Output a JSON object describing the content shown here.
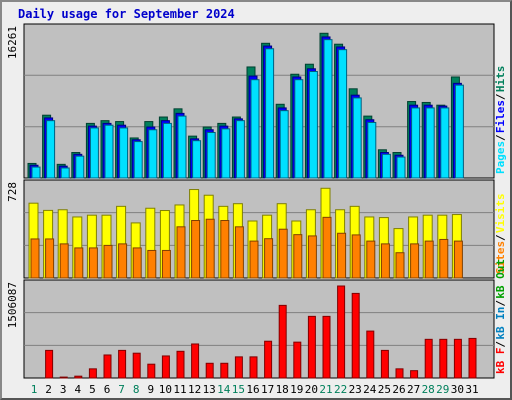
{
  "title": "Daily usage for September 2024",
  "colors": {
    "panel_bg": "#c0c0c0",
    "hits": "#00805c",
    "files": "#0000ff",
    "pages": "#00e0ff",
    "visits": "#ffff00",
    "sites": "#ff8000",
    "kb_in": "#0080c0",
    "kb_out": "#00a000",
    "kb_f": "#ff0000",
    "weekend_label": "#00805c",
    "weekday_label": "#000000"
  },
  "legend": {
    "top": {
      "sep": "/",
      "items": [
        "Pages",
        "Files",
        "Hits"
      ]
    },
    "middle": {
      "sep": "/",
      "items": [
        "Sites",
        "Visits"
      ]
    },
    "bottom": {
      "sep": "/",
      "items": [
        "kB F",
        "kB In",
        "kB Out"
      ]
    }
  },
  "chart_data": [
    {
      "type": "bar",
      "panel": "top",
      "ylabel_max": "16261",
      "ylim": [
        0,
        16261
      ],
      "categories": [
        "1",
        "2",
        "3",
        "4",
        "5",
        "6",
        "7",
        "8",
        "9",
        "10",
        "11",
        "12",
        "13",
        "14",
        "15",
        "16",
        "17",
        "18",
        "19",
        "20",
        "21",
        "22",
        "23",
        "24",
        "25",
        "26",
        "27",
        "28",
        "29",
        "30",
        "31"
      ],
      "series": [
        {
          "name": "Hits",
          "values": [
            1600,
            6900,
            1500,
            2800,
            6000,
            6300,
            6200,
            4400,
            6200,
            6700,
            7600,
            4600,
            5600,
            6000,
            6700,
            12200,
            14800,
            8100,
            11400,
            12500,
            15900,
            14700,
            9800,
            6800,
            3100,
            2800,
            8400,
            8300,
            8000,
            11100,
            0
          ]
        },
        {
          "name": "Files",
          "values": [
            1400,
            6600,
            1300,
            2600,
            5700,
            6000,
            5800,
            4200,
            5600,
            6300,
            7100,
            4300,
            5300,
            5700,
            6500,
            11200,
            14500,
            7700,
            11100,
            12000,
            15500,
            14400,
            9100,
            6400,
            2800,
            2500,
            8000,
            8000,
            7900,
            10400,
            0
          ]
        },
        {
          "name": "Pages",
          "values": [
            1200,
            6300,
            1100,
            2400,
            5500,
            5800,
            5500,
            4000,
            5300,
            6000,
            6800,
            4100,
            5000,
            5400,
            6300,
            10800,
            14200,
            7400,
            10800,
            11700,
            15200,
            14100,
            8800,
            6100,
            2600,
            2300,
            7700,
            7700,
            7700,
            10200,
            0
          ]
        }
      ]
    },
    {
      "type": "bar",
      "panel": "middle",
      "ylabel_max": "728",
      "ylim": [
        0,
        728
      ],
      "categories": [
        "1",
        "2",
        "3",
        "4",
        "5",
        "6",
        "7",
        "8",
        "9",
        "10",
        "11",
        "12",
        "13",
        "14",
        "15",
        "16",
        "17",
        "18",
        "19",
        "20",
        "21",
        "22",
        "23",
        "24",
        "25",
        "26",
        "27",
        "28",
        "29",
        "30",
        "31"
      ],
      "series": [
        {
          "name": "Visits",
          "values": [
            592,
            535,
            540,
            483,
            497,
            497,
            567,
            436,
            552,
            534,
            578,
            700,
            655,
            567,
            588,
            451,
            497,
            588,
            451,
            540,
            710,
            540,
            567,
            483,
            478,
            391,
            483,
            497,
            497,
            502,
            0
          ]
        },
        {
          "name": "Sites",
          "values": [
            309,
            309,
            270,
            238,
            238,
            258,
            270,
            238,
            218,
            218,
            405,
            455,
            465,
            455,
            405,
            292,
            311,
            386,
            343,
            333,
            480,
            354,
            341,
            292,
            270,
            200,
            270,
            292,
            305,
            292,
            0
          ]
        }
      ]
    },
    {
      "type": "bar",
      "panel": "bottom",
      "ylabel_max": "1506087",
      "ylim": [
        0,
        1506087
      ],
      "categories": [
        "1",
        "2",
        "3",
        "4",
        "5",
        "6",
        "7",
        "8",
        "9",
        "10",
        "11",
        "12",
        "13",
        "14",
        "15",
        "16",
        "17",
        "18",
        "19",
        "20",
        "21",
        "22",
        "23",
        "24",
        "25",
        "26",
        "27",
        "28",
        "29",
        "30",
        "31"
      ],
      "series": [
        {
          "name": "kB F",
          "values": [
            0,
            452000,
            15000,
            30000,
            150000,
            377000,
            452000,
            406000,
            226000,
            361000,
            437000,
            557000,
            241000,
            241000,
            346000,
            346000,
            602000,
            1189000,
            587000,
            1009000,
            1009000,
            1506087,
            1385000,
            768000,
            452000,
            150000,
            120000,
            633000,
            633000,
            633000,
            648000
          ]
        }
      ]
    }
  ]
}
